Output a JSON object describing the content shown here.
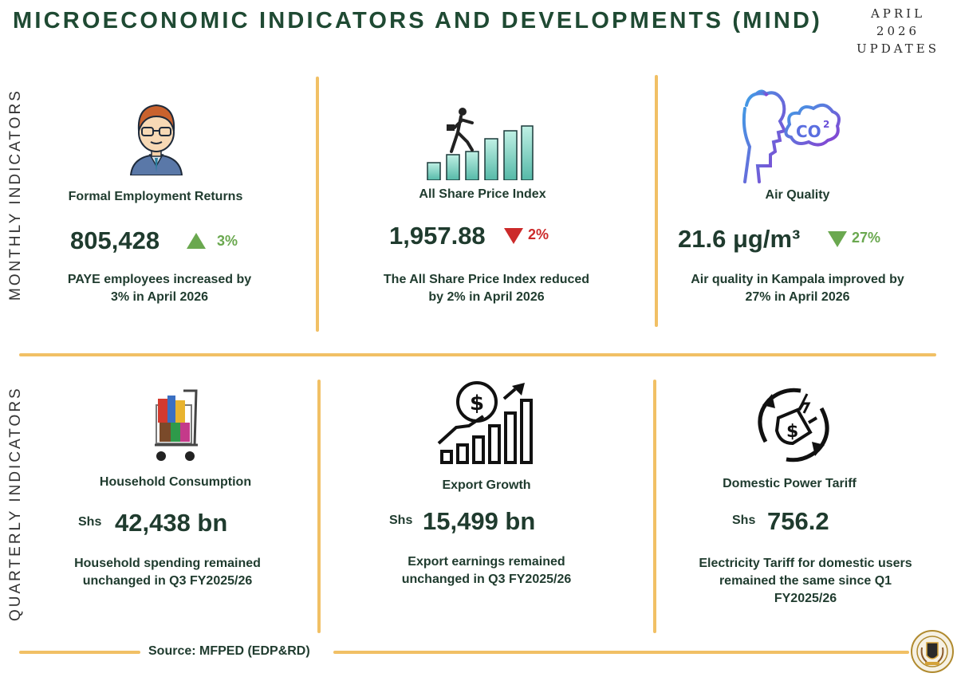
{
  "header": {
    "title": "MICROECONOMIC INDICATORS AND DEVELOPMENTS (MIND)",
    "period_line1": "APRIL",
    "period_line2": "2026",
    "period_line3": "UPDATES"
  },
  "sections": {
    "monthly_label": "MONTHLY INDICATORS",
    "quarterly_label": "QUARTERLY INDICATORS"
  },
  "monthly": [
    {
      "title": "Formal Employment Returns",
      "value": "805,428",
      "change": "3%",
      "direction": "up",
      "desc_line1": "PAYE employees increased by",
      "desc_line2": "3% in April 2026",
      "icon": "employee-icon"
    },
    {
      "title": "All Share Price Index",
      "value": "1,957.88",
      "change": "2%",
      "direction": "down",
      "desc_line1": "The All Share Price Index reduced",
      "desc_line2": "by 2% in April 2026",
      "icon": "stock-growth-icon"
    },
    {
      "title": "Air Quality",
      "value": "21.6 μg/m³",
      "change": "27%",
      "direction": "down",
      "desc_line1": "Air quality in Kampala improved by",
      "desc_line2": "27% in April 2026",
      "icon": "co2-breathing-icon"
    }
  ],
  "quarterly": [
    {
      "title": "Household Consumption",
      "currency": "Shs",
      "value": "42,438 bn",
      "desc_line1": "Household spending remained",
      "desc_line2": "unchanged in Q3 FY2025/26",
      "icon": "shopping-cart-icon"
    },
    {
      "title": "Export Growth",
      "currency": "Shs",
      "value": "15,499 bn",
      "desc_line1": "Export earnings remained",
      "desc_line2": "unchanged in Q3 FY2025/26",
      "icon": "money-growth-chart-icon"
    },
    {
      "title": "Domestic Power Tariff",
      "currency": "Shs",
      "value": "756.2",
      "desc_line1": "Electricity Tariff for domestic users",
      "desc_line2": "remained the same since Q1",
      "desc_line3": "FY2025/26",
      "icon": "power-plug-cost-icon"
    }
  ],
  "footer": {
    "source": "Source: MFPED (EDP&RD)",
    "emblem": "coat-of-arms-icon"
  },
  "colors": {
    "accent_divider": "#f1c065",
    "title_green": "#1f4a33",
    "up_green": "#6aa84f",
    "down_red": "#cc2a2a"
  }
}
